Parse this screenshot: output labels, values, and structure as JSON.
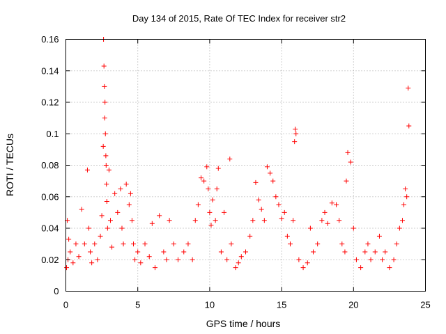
{
  "chart_data": {
    "type": "scatter",
    "title": "Day 134 of 2015, Rate Of TEC Index for receiver str2",
    "xlabel": "GPS time / hours",
    "ylabel": "ROTI / TECUs",
    "xlim": [
      0,
      25
    ],
    "ylim": [
      0,
      0.16
    ],
    "xticks": [
      0,
      5,
      10,
      15,
      20,
      25
    ],
    "yticks": [
      0,
      0.02,
      0.04,
      0.06,
      0.08,
      0.1,
      0.12,
      0.14,
      0.16
    ],
    "xtick_labels": [
      "0",
      "5",
      "10",
      "15",
      "20",
      "25"
    ],
    "ytick_labels": [
      "0",
      "0.02",
      "0.04",
      "0.06",
      "0.08",
      "0.1",
      "0.12",
      "0.14",
      "0.16"
    ],
    "grid": true,
    "marker": "+",
    "color": "#ff0000",
    "series": [
      {
        "name": "ROTI",
        "x": [
          0.05,
          0.1,
          0.15,
          0.2,
          0.3,
          0.5,
          0.7,
          0.9,
          1.1,
          1.3,
          1.5,
          1.6,
          1.7,
          1.8,
          2.0,
          2.2,
          2.4,
          2.5,
          2.6,
          2.62,
          2.65,
          2.68,
          2.7,
          2.72,
          2.75,
          2.78,
          2.8,
          2.82,
          2.85,
          2.9,
          3.0,
          3.1,
          3.2,
          3.4,
          3.6,
          3.8,
          3.9,
          4.0,
          4.2,
          4.4,
          4.5,
          4.6,
          4.7,
          4.8,
          5.0,
          5.2,
          5.5,
          5.8,
          6.0,
          6.2,
          6.5,
          6.8,
          7.0,
          7.2,
          7.5,
          7.8,
          8.2,
          8.5,
          8.8,
          9.0,
          9.2,
          9.4,
          9.6,
          9.8,
          9.9,
          10.0,
          10.1,
          10.2,
          10.4,
          10.5,
          10.6,
          10.8,
          11.0,
          11.2,
          11.4,
          11.5,
          11.8,
          12.0,
          12.2,
          12.5,
          12.8,
          13.0,
          13.2,
          13.4,
          13.6,
          13.8,
          14.0,
          14.2,
          14.4,
          14.6,
          14.8,
          15.0,
          15.2,
          15.4,
          15.6,
          15.8,
          15.9,
          15.95,
          16.0,
          16.2,
          16.5,
          16.8,
          17.0,
          17.2,
          17.5,
          17.8,
          18.0,
          18.2,
          18.5,
          18.8,
          19.0,
          19.2,
          19.4,
          19.5,
          19.6,
          19.8,
          20.0,
          20.2,
          20.5,
          20.8,
          21.0,
          21.2,
          21.5,
          21.8,
          22.0,
          22.2,
          22.5,
          22.8,
          23.0,
          23.2,
          23.4,
          23.5,
          23.6,
          23.7,
          23.8,
          23.85
        ],
        "y": [
          0.015,
          0.045,
          0.02,
          0.033,
          0.025,
          0.018,
          0.03,
          0.022,
          0.052,
          0.03,
          0.077,
          0.04,
          0.025,
          0.018,
          0.03,
          0.02,
          0.035,
          0.048,
          0.092,
          0.16,
          0.143,
          0.13,
          0.11,
          0.12,
          0.1,
          0.086,
          0.08,
          0.068,
          0.057,
          0.04,
          0.077,
          0.045,
          0.028,
          0.062,
          0.05,
          0.065,
          0.04,
          0.03,
          0.068,
          0.055,
          0.062,
          0.045,
          0.03,
          0.02,
          0.025,
          0.018,
          0.03,
          0.022,
          0.043,
          0.015,
          0.048,
          0.025,
          0.02,
          0.045,
          0.03,
          0.02,
          0.025,
          0.03,
          0.02,
          0.045,
          0.055,
          0.072,
          0.07,
          0.079,
          0.065,
          0.05,
          0.042,
          0.058,
          0.045,
          0.065,
          0.078,
          0.025,
          0.05,
          0.02,
          0.084,
          0.03,
          0.015,
          0.018,
          0.022,
          0.025,
          0.035,
          0.045,
          0.069,
          0.058,
          0.052,
          0.045,
          0.079,
          0.075,
          0.07,
          0.06,
          0.055,
          0.046,
          0.05,
          0.035,
          0.03,
          0.045,
          0.095,
          0.103,
          0.1,
          0.02,
          0.015,
          0.018,
          0.04,
          0.025,
          0.03,
          0.045,
          0.05,
          0.043,
          0.056,
          0.055,
          0.045,
          0.03,
          0.025,
          0.07,
          0.088,
          0.082,
          0.04,
          0.02,
          0.015,
          0.025,
          0.03,
          0.02,
          0.025,
          0.035,
          0.02,
          0.025,
          0.015,
          0.02,
          0.03,
          0.04,
          0.045,
          0.055,
          0.065,
          0.06,
          0.129,
          0.105
        ]
      }
    ]
  }
}
